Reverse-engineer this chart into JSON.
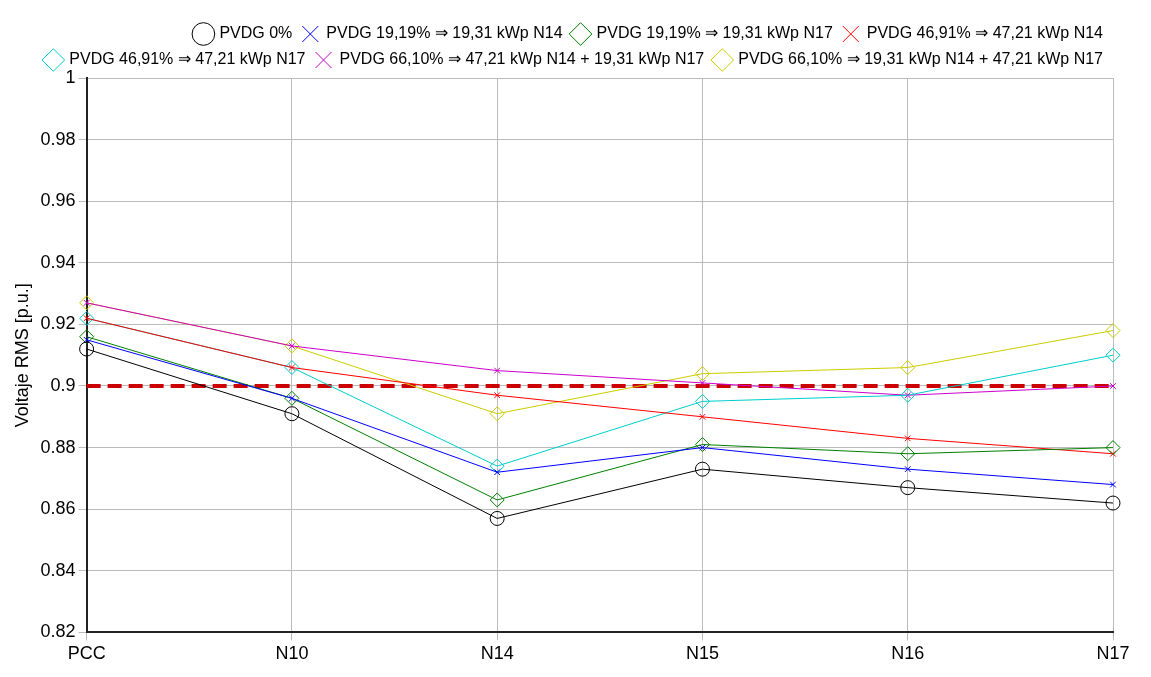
{
  "chart_data": {
    "type": "line",
    "ylabel": "Voltaje RMS [p.u.]",
    "categories": [
      "PCC",
      "N10",
      "N14",
      "N15",
      "N16",
      "N17"
    ],
    "ylim": [
      0.82,
      1
    ],
    "yticks": [
      0.82,
      0.84,
      0.86,
      0.88,
      0.9,
      0.92,
      0.94,
      0.96,
      0.98,
      1
    ],
    "grid": true,
    "legend": "top right",
    "ref_lines": [
      {
        "axis": "y",
        "value": 0.9,
        "color": "#cc0000",
        "line_style": "dashed"
      }
    ],
    "series": [
      {
        "name": "PVDG 0%",
        "color": "#000000",
        "marker": "circle",
        "values": [
          0.912,
          0.891,
          0.857,
          0.873,
          0.867,
          0.862
        ]
      },
      {
        "name": "PVDG 19,19% ⇒ 19,31 kWp N14",
        "color": "#0000ff",
        "marker": "cross",
        "values": [
          0.915,
          0.896,
          0.872,
          0.88,
          0.873,
          0.868
        ]
      },
      {
        "name": "PVDG 19,19% ⇒ 19,31 kWp N17",
        "color": "#008000",
        "marker": "diamond",
        "values": [
          0.916,
          0.896,
          0.863,
          0.881,
          0.878,
          0.88
        ]
      },
      {
        "name": "PVDG 46,91% ⇒ 47,21 kWp N14",
        "color": "#ff0000",
        "marker": "cross",
        "values": [
          0.922,
          0.906,
          0.897,
          0.89,
          0.883,
          0.878
        ]
      },
      {
        "name": "PVDG 46,91% ⇒ 47,21 kWp N17",
        "color": "#00cccc",
        "marker": "diamond",
        "values": [
          0.922,
          0.906,
          0.874,
          0.895,
          0.897,
          0.91
        ]
      },
      {
        "name": "PVDG 66,10% ⇒ 47,21 kWp N14 + 19,31 kWp N17",
        "color": "#cc00cc",
        "marker": "cross",
        "values": [
          0.927,
          0.913,
          0.905,
          0.901,
          0.897,
          0.9
        ]
      },
      {
        "name": "PVDG 66,10% ⇒ 19,31 kWp N14 + 47,21 kWp N17",
        "color": "#cccc00",
        "marker": "diamond",
        "values": [
          0.927,
          0.913,
          0.891,
          0.904,
          0.906,
          0.918
        ]
      }
    ]
  }
}
